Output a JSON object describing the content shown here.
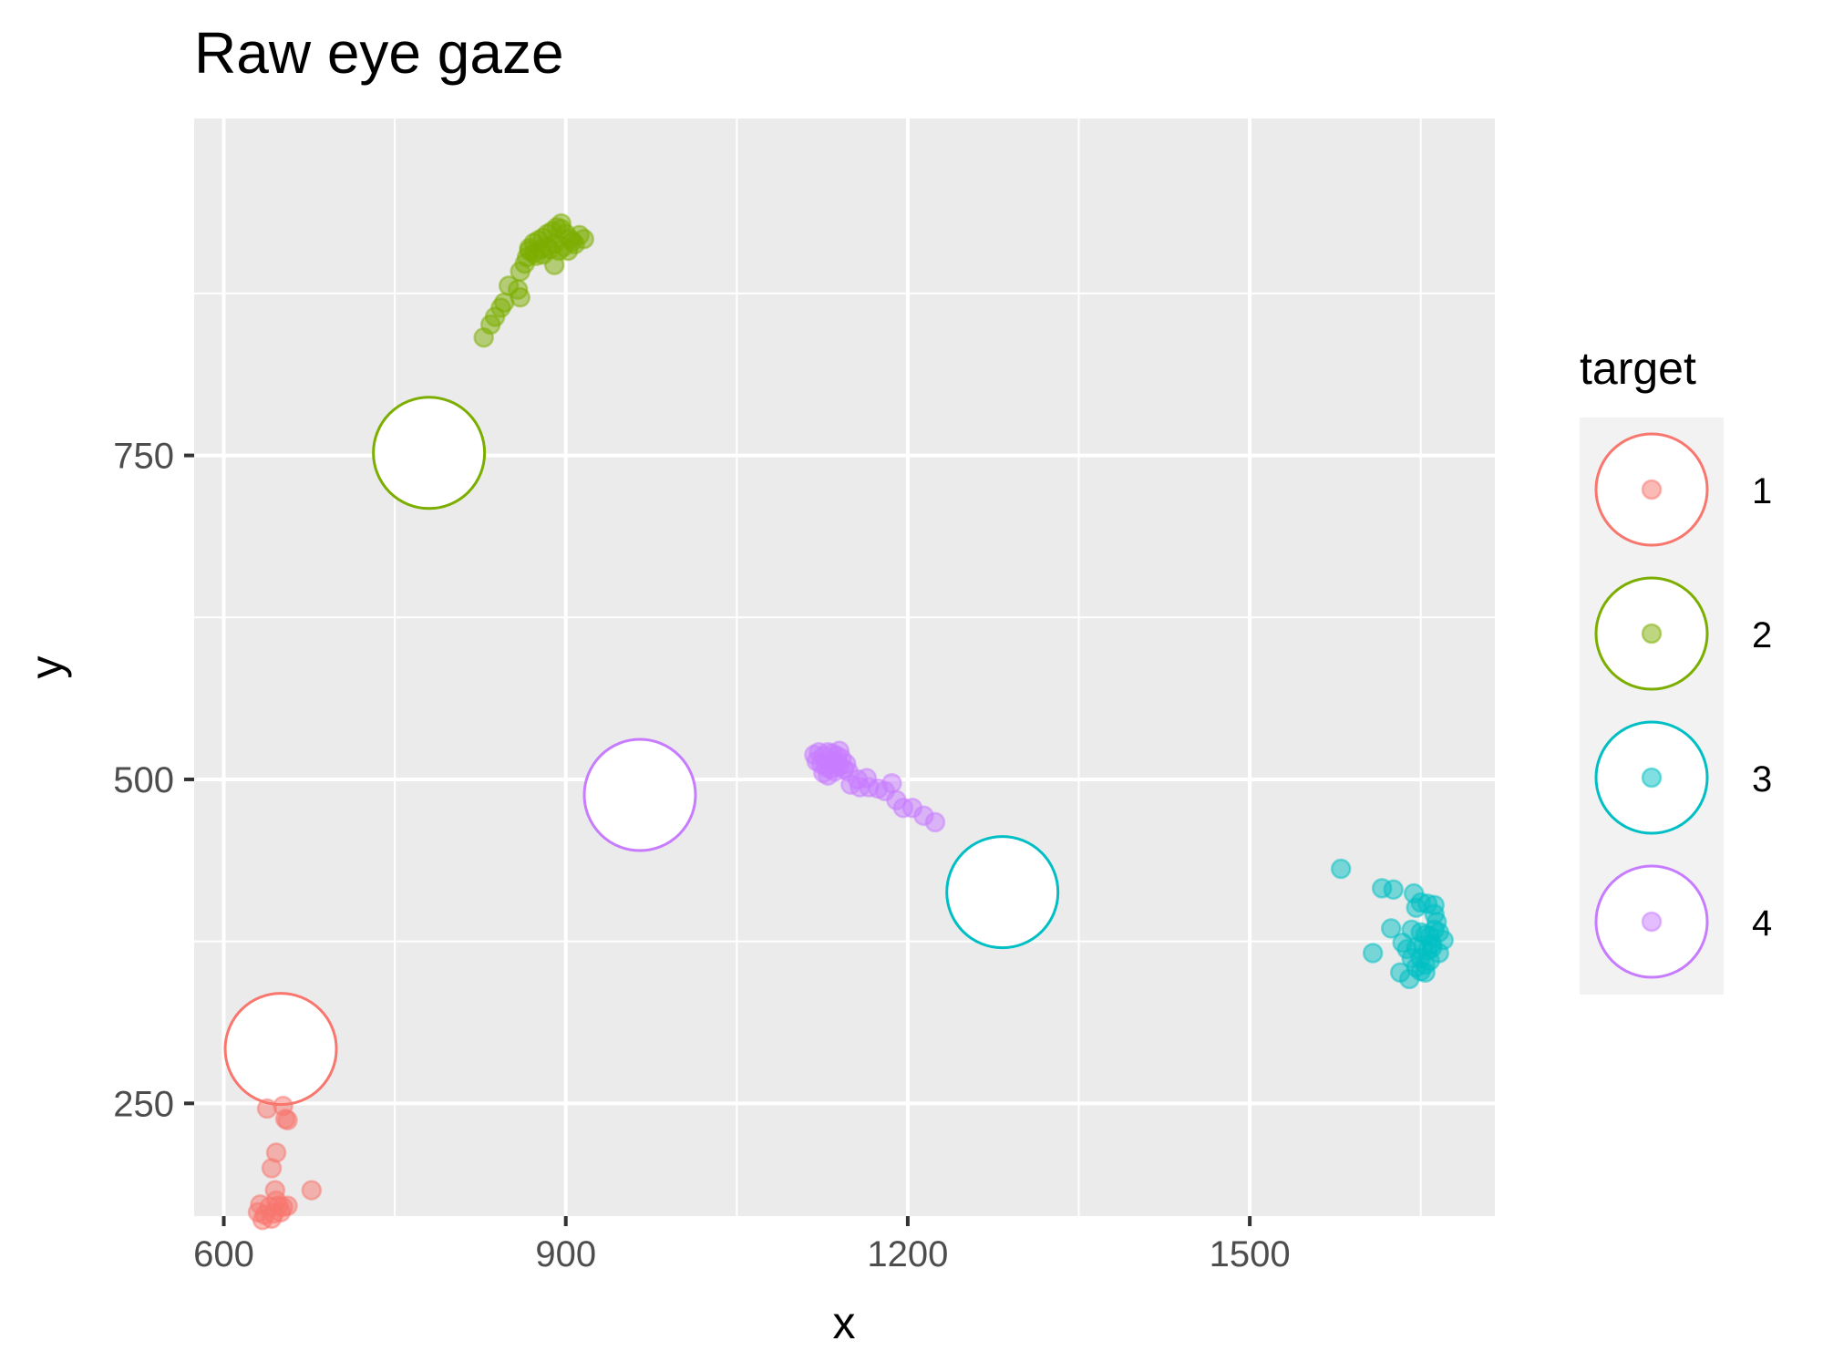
{
  "chart_data": {
    "type": "scatter",
    "title": "Raw eye gaze",
    "xlabel": "x",
    "ylabel": "y",
    "xlim": [
      574,
      1715
    ],
    "ylim": [
      163,
      1010
    ],
    "x_ticks": [
      600,
      900,
      1200,
      1500
    ],
    "y_ticks": [
      250,
      500,
      750
    ],
    "x_tick_labels": [
      "600",
      "900",
      "1200",
      "1500"
    ],
    "y_tick_labels": [
      "250",
      "500",
      "750"
    ],
    "x_minor_ticks": [
      750,
      1050,
      1350,
      1650
    ],
    "y_minor_ticks": [
      375,
      625,
      875
    ],
    "grid": true,
    "background": "#EBEBEB",
    "legend": {
      "title": "target",
      "position": "right",
      "entries": [
        "1",
        "2",
        "3",
        "4"
      ]
    },
    "colors": {
      "1": "#F8766D",
      "2": "#7CAE00",
      "3": "#00BFC4",
      "4": "#C77CFF"
    },
    "targets": [
      {
        "target": "1",
        "x": 650,
        "y": 292
      },
      {
        "target": "2",
        "x": 780,
        "y": 752
      },
      {
        "target": "3",
        "x": 1283,
        "y": 413
      },
      {
        "target": "4",
        "x": 965,
        "y": 488
      }
    ],
    "series": [
      {
        "name": "1",
        "points": [
          [
            638,
            246
          ],
          [
            652,
            248
          ],
          [
            654,
            238
          ],
          [
            656,
            237
          ],
          [
            646,
            212
          ],
          [
            642,
            200
          ],
          [
            645,
            183
          ],
          [
            677,
            183
          ],
          [
            632,
            172
          ],
          [
            640,
            170
          ],
          [
            648,
            171
          ],
          [
            652,
            170
          ],
          [
            656,
            171
          ],
          [
            630,
            166
          ],
          [
            636,
            164
          ],
          [
            644,
            165
          ],
          [
            650,
            166
          ],
          [
            634,
            160
          ],
          [
            642,
            161
          ],
          [
            646,
            175
          ]
        ]
      },
      {
        "name": "2",
        "points": [
          [
            828,
            841
          ],
          [
            834,
            851
          ],
          [
            838,
            857
          ],
          [
            843,
            864
          ],
          [
            846,
            868
          ],
          [
            850,
            881
          ],
          [
            858,
            878
          ],
          [
            860,
            872
          ],
          [
            860,
            892
          ],
          [
            864,
            898
          ],
          [
            866,
            903
          ],
          [
            868,
            910
          ],
          [
            872,
            914
          ],
          [
            876,
            916
          ],
          [
            880,
            918
          ],
          [
            884,
            921
          ],
          [
            888,
            923
          ],
          [
            892,
            926
          ],
          [
            896,
            925
          ],
          [
            900,
            921
          ],
          [
            904,
            917
          ],
          [
            908,
            913
          ],
          [
            912,
            920
          ],
          [
            868,
            908
          ],
          [
            872,
            906
          ],
          [
            878,
            909
          ],
          [
            884,
            911
          ],
          [
            890,
            913
          ],
          [
            894,
            908
          ],
          [
            898,
            911
          ],
          [
            902,
            908
          ],
          [
            906,
            915
          ],
          [
            880,
            905
          ],
          [
            886,
            909
          ],
          [
            916,
            917
          ],
          [
            890,
            897
          ],
          [
            874,
            904
          ],
          [
            896,
            929
          ]
        ]
      },
      {
        "name": "3",
        "points": [
          [
            1580,
            431
          ],
          [
            1616,
            416
          ],
          [
            1626,
            415
          ],
          [
            1644,
            412
          ],
          [
            1650,
            405
          ],
          [
            1656,
            404
          ],
          [
            1662,
            403
          ],
          [
            1646,
            401
          ],
          [
            1662,
            396
          ],
          [
            1624,
            385
          ],
          [
            1642,
            384
          ],
          [
            1650,
            382
          ],
          [
            1654,
            380
          ],
          [
            1658,
            379
          ],
          [
            1662,
            384
          ],
          [
            1666,
            382
          ],
          [
            1670,
            376
          ],
          [
            1634,
            374
          ],
          [
            1638,
            369
          ],
          [
            1646,
            370
          ],
          [
            1652,
            372
          ],
          [
            1656,
            368
          ],
          [
            1660,
            373
          ],
          [
            1666,
            366
          ],
          [
            1608,
            366
          ],
          [
            1642,
            362
          ],
          [
            1650,
            362
          ],
          [
            1654,
            357
          ],
          [
            1658,
            360
          ],
          [
            1646,
            355
          ],
          [
            1650,
            352
          ],
          [
            1654,
            351
          ],
          [
            1632,
            351
          ],
          [
            1640,
            346
          ],
          [
            1660,
            370
          ],
          [
            1664,
            390
          ]
        ]
      },
      {
        "name": "4",
        "points": [
          [
            1118,
            519
          ],
          [
            1122,
            521
          ],
          [
            1126,
            518
          ],
          [
            1130,
            521
          ],
          [
            1134,
            520
          ],
          [
            1138,
            518
          ],
          [
            1142,
            516
          ],
          [
            1120,
            514
          ],
          [
            1124,
            512
          ],
          [
            1128,
            510
          ],
          [
            1132,
            508
          ],
          [
            1136,
            506
          ],
          [
            1140,
            510
          ],
          [
            1144,
            508
          ],
          [
            1148,
            506
          ],
          [
            1126,
            505
          ],
          [
            1130,
            503
          ],
          [
            1138,
            513
          ],
          [
            1146,
            512
          ],
          [
            1164,
            501
          ],
          [
            1150,
            496
          ],
          [
            1158,
            494
          ],
          [
            1166,
            494
          ],
          [
            1174,
            493
          ],
          [
            1180,
            491
          ],
          [
            1186,
            497
          ],
          [
            1190,
            484
          ],
          [
            1196,
            478
          ],
          [
            1204,
            478
          ],
          [
            1214,
            472
          ],
          [
            1224,
            467
          ],
          [
            1156,
            500
          ],
          [
            1134,
            514
          ],
          [
            1140,
            522
          ]
        ]
      }
    ]
  }
}
